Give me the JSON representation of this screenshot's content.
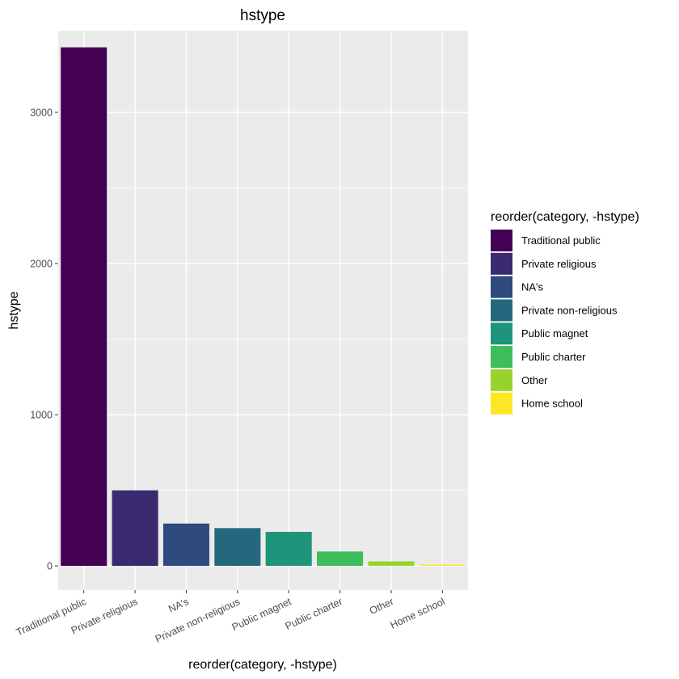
{
  "chart_data": {
    "type": "bar",
    "title": "hstype",
    "xlabel": "reorder(category, -hstype)",
    "ylabel": "hstype",
    "categories": [
      "Traditional public",
      "Private religious",
      "NA's",
      "Private non-religious",
      "Public magnet",
      "Public charter",
      "Other",
      "Home school"
    ],
    "values": [
      3430,
      500,
      280,
      250,
      225,
      95,
      30,
      8
    ],
    "colors": [
      "#440154",
      "#3B2A6F",
      "#2E4A7E",
      "#24687E",
      "#1E947A",
      "#3EBD5C",
      "#96D42B",
      "#FDE725"
    ],
    "ylim": [
      -160,
      3540
    ],
    "yticks": [
      0,
      1000,
      2000,
      3000
    ],
    "ytick_labels": [
      "0",
      "1000",
      "2000",
      "3000"
    ],
    "grid": true,
    "legend": {
      "title": "reorder(category, -hstype)",
      "placement": "right"
    }
  }
}
